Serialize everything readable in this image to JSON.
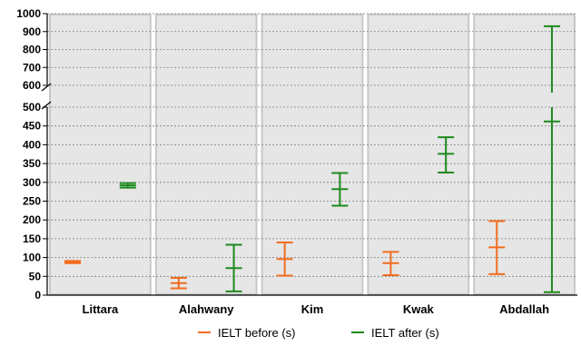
{
  "chart_data": {
    "type": "errorbar",
    "categories": [
      "Littara",
      "Alahwany",
      "Kim",
      "Kwak",
      "Abdallah"
    ],
    "y_ticks_lower": [
      "0",
      "50",
      "100",
      "150",
      "200",
      "250",
      "300",
      "350",
      "400",
      "450",
      "500"
    ],
    "y_ticks_upper": [
      "600",
      "700",
      "800",
      "900",
      "1000"
    ],
    "y_axis_break": [
      500,
      600
    ],
    "ylim": [
      0,
      1000
    ],
    "grid": true,
    "legend_position": "bottom",
    "series": [
      {
        "name": "IELT before (s)",
        "color": "#f26d1f",
        "points": [
          {
            "category": "Littara",
            "mean": 88,
            "low": 85,
            "high": 91
          },
          {
            "category": "Alahwany",
            "mean": 32,
            "low": 18,
            "high": 46
          },
          {
            "category": "Kim",
            "mean": 96,
            "low": 52,
            "high": 140
          },
          {
            "category": "Kwak",
            "mean": 85,
            "low": 53,
            "high": 115
          },
          {
            "category": "Abdallah",
            "mean": 127,
            "low": 56,
            "high": 197
          }
        ]
      },
      {
        "name": "IELT after (s)",
        "color": "#1e8a1e",
        "points": [
          {
            "category": "Littara",
            "mean": 292,
            "low": 286,
            "high": 298
          },
          {
            "category": "Alahwany",
            "mean": 72,
            "low": 10,
            "high": 134
          },
          {
            "category": "Kim",
            "mean": 282,
            "low": 238,
            "high": 325
          },
          {
            "category": "Kwak",
            "mean": 376,
            "low": 326,
            "high": 420
          },
          {
            "category": "Abdallah",
            "mean": 462,
            "low": 8,
            "high": 930
          }
        ]
      }
    ]
  }
}
